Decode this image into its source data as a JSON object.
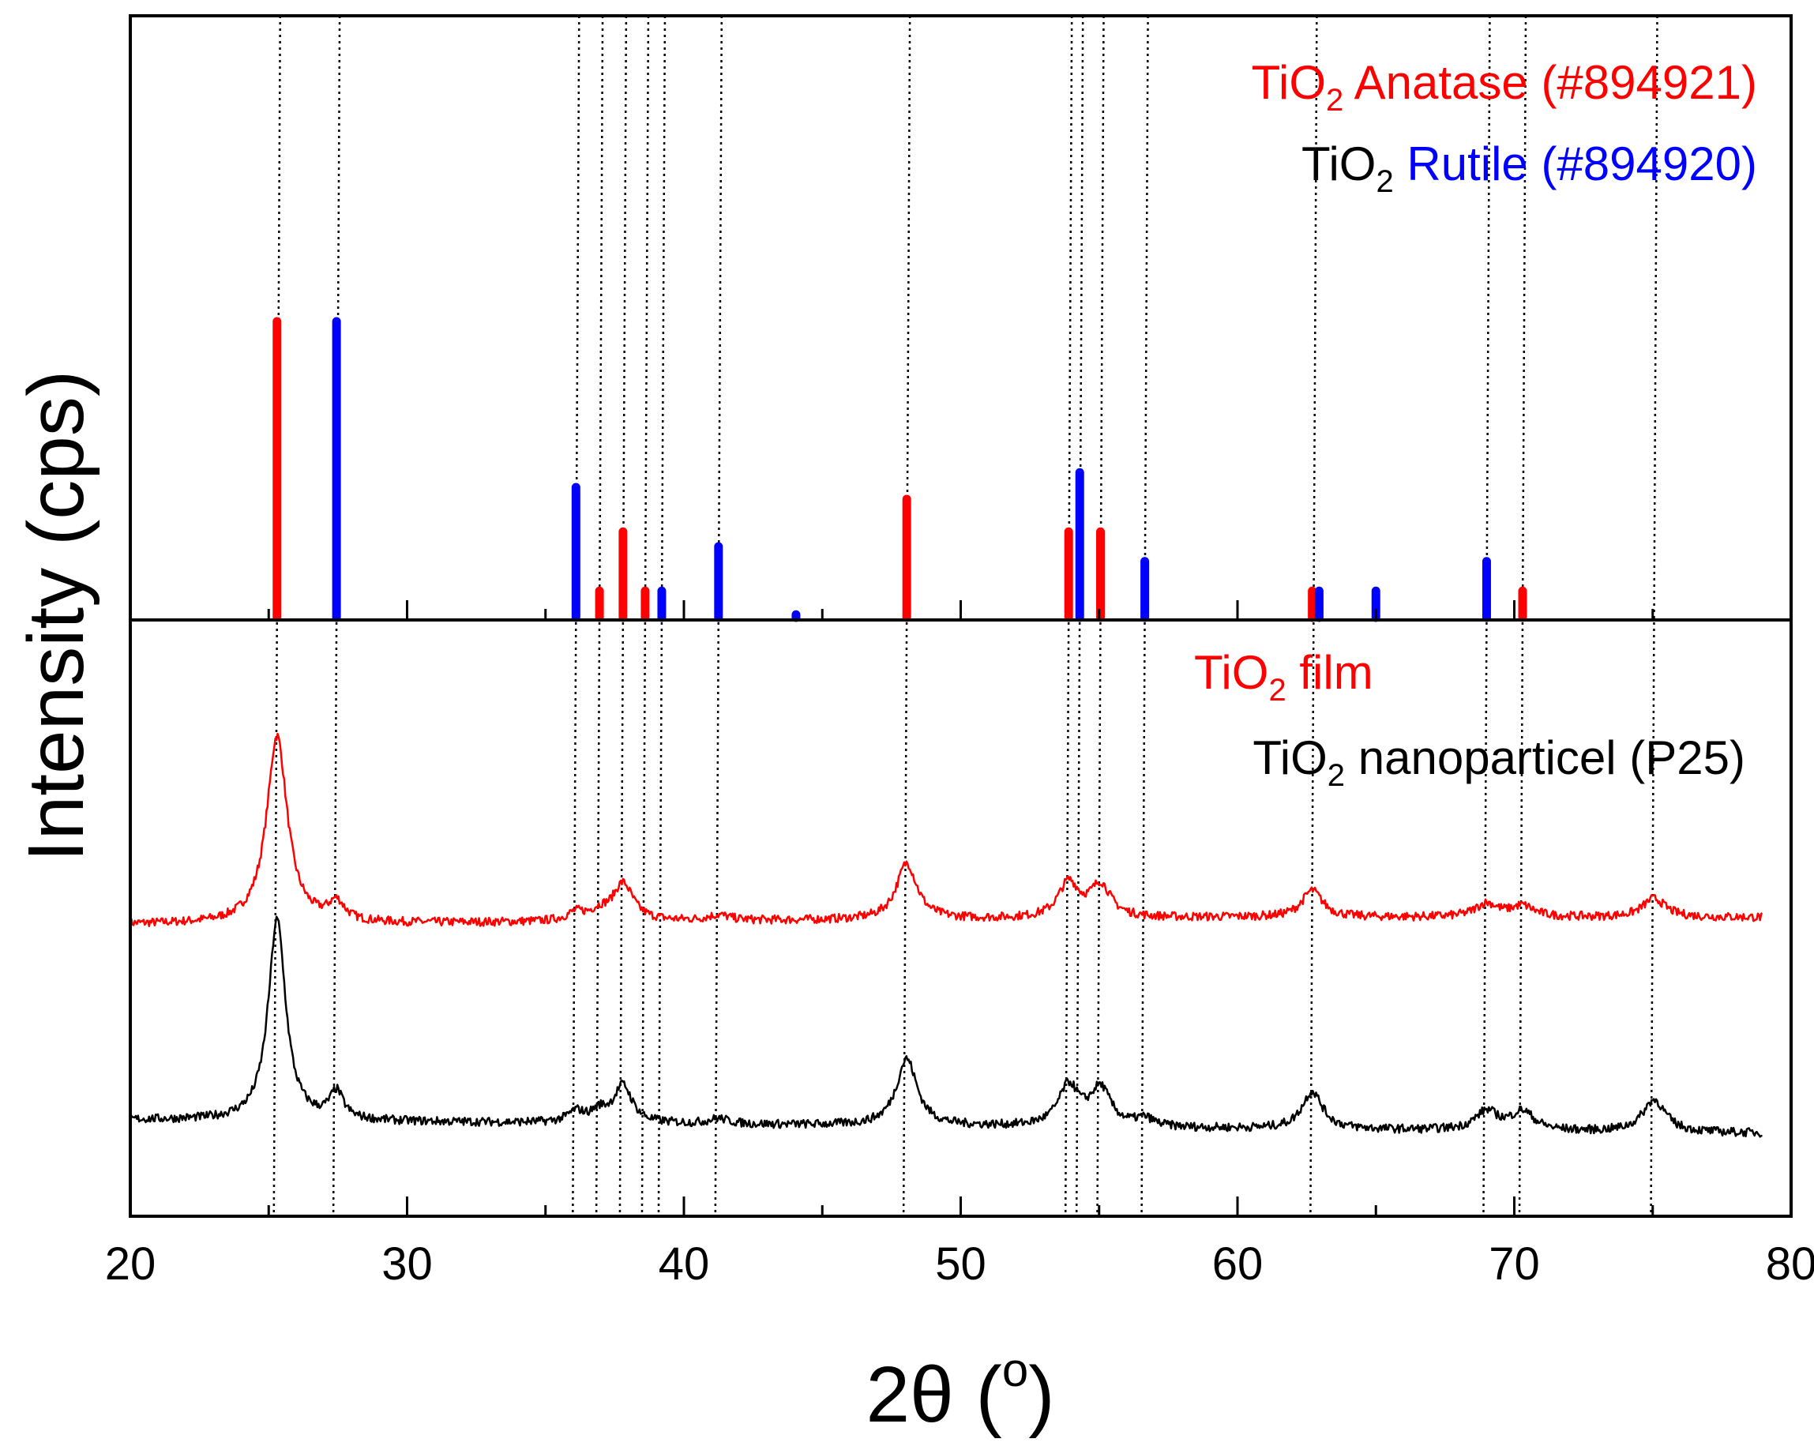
{
  "chart_data": {
    "type": "line",
    "xlabel": "2θ (",
    "xlabel_sup": "o",
    "xlabel_end": ")",
    "ylabel": "Intensity (cps)",
    "xlim": [
      20,
      80
    ],
    "x_ticks": [
      20,
      30,
      40,
      50,
      60,
      70,
      80
    ],
    "x_tick_labels": [
      "20",
      "30",
      "40",
      "50",
      "60",
      "70",
      "80"
    ],
    "colors": {
      "anatase": "#ff0000",
      "rutile": "#0000ff",
      "film": "#ff0000",
      "p25": "#000000"
    },
    "legend_top": {
      "anatase": {
        "prefix": "TiO",
        "sub": "2",
        "label": " Anatase (#894921)"
      },
      "rutile": {
        "prefix": "TiO",
        "sub": "2",
        "label": " Rutile (#894920)"
      }
    },
    "legend_bottom": {
      "film": {
        "prefix": "TiO",
        "sub": "2",
        "label": " film"
      },
      "p25": {
        "prefix": "TiO",
        "sub": "2",
        "label": " nanoparticel (P25)"
      }
    },
    "reference_lines_2theta": [
      25.3,
      27.45,
      36.1,
      36.95,
      37.8,
      38.6,
      39.2,
      41.25,
      48.05,
      53.9,
      54.3,
      55.05,
      56.65,
      62.75,
      69.0,
      70.3,
      75.05
    ],
    "anatase_peaks": {
      "two_theta": [
        25.3,
        36.95,
        37.8,
        38.6,
        48.05,
        53.9,
        55.05,
        62.7,
        70.3
      ],
      "relative_intensity": [
        100,
        9,
        29,
        9,
        40,
        29,
        29,
        9,
        9
      ]
    },
    "rutile_peaks": {
      "two_theta": [
        27.45,
        36.1,
        39.2,
        41.25,
        44.05,
        54.3,
        56.65,
        62.95,
        65.0,
        69.0
      ],
      "relative_intensity": [
        100,
        44,
        9,
        24,
        1,
        49,
        19,
        9,
        9,
        19
      ]
    },
    "series": [
      {
        "name": "TiO2 film",
        "baseline": [
          [
            20,
            0.5
          ],
          [
            24,
            0.5
          ],
          [
            27,
            0.5
          ],
          [
            40,
            1.5
          ],
          [
            60,
            3
          ],
          [
            79,
            3
          ]
        ],
        "peaks": [
          [
            25.3,
            0.45,
            70
          ],
          [
            27.45,
            0.35,
            7
          ],
          [
            36.1,
            0.4,
            3
          ],
          [
            36.95,
            0.4,
            3
          ],
          [
            37.8,
            0.45,
            14
          ],
          [
            41.25,
            0.5,
            2
          ],
          [
            48.05,
            0.45,
            21
          ],
          [
            53.9,
            0.45,
            13
          ],
          [
            55.05,
            0.45,
            12
          ],
          [
            62.7,
            0.45,
            10
          ],
          [
            69.0,
            0.5,
            5
          ],
          [
            70.3,
            0.5,
            4
          ],
          [
            75.05,
            0.5,
            7
          ]
        ]
      },
      {
        "name": "TiO2 nanoparticel (P25)",
        "baseline": [
          [
            20,
            0
          ],
          [
            79,
            -5
          ]
        ],
        "peaks": [
          [
            25.3,
            0.38,
            75
          ],
          [
            27.45,
            0.3,
            10
          ],
          [
            36.1,
            0.35,
            4
          ],
          [
            36.95,
            0.35,
            4
          ],
          [
            37.8,
            0.4,
            14
          ],
          [
            41.25,
            0.45,
            2
          ],
          [
            48.05,
            0.45,
            25
          ],
          [
            53.9,
            0.45,
            15
          ],
          [
            55.05,
            0.45,
            14
          ],
          [
            56.65,
            0.4,
            3
          ],
          [
            62.7,
            0.45,
            14
          ],
          [
            69.0,
            0.5,
            7
          ],
          [
            70.3,
            0.5,
            7
          ],
          [
            75.05,
            0.5,
            12
          ]
        ]
      }
    ]
  }
}
